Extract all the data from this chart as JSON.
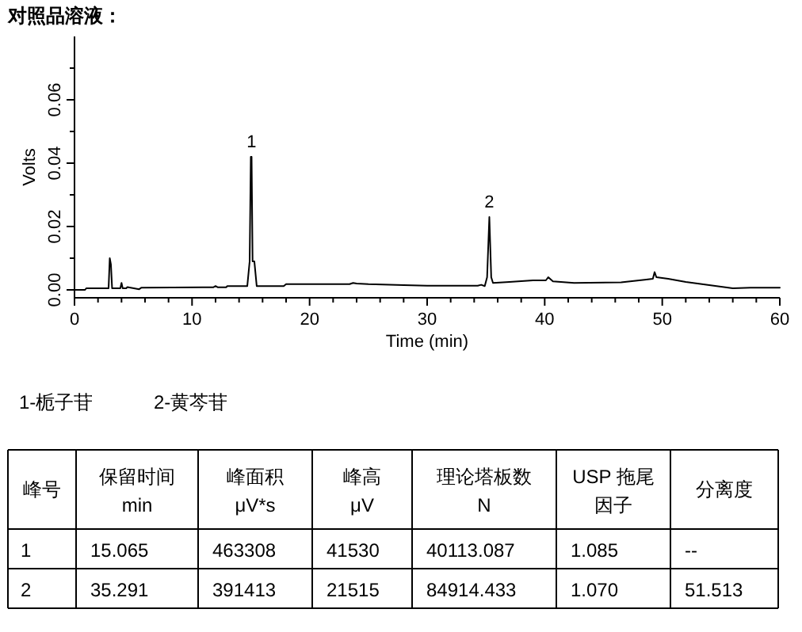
{
  "chart_data": {
    "type": "line",
    "title": "对照品溶液：",
    "xlabel": "Time (min)",
    "ylabel": "Volts",
    "xlim": [
      0,
      60
    ],
    "xticks": [
      0,
      {
        "value": 2,
        "label": null
      },
      {
        "value": 4,
        "label": null
      },
      {
        "value": 6,
        "label": null
      },
      {
        "value": 8,
        "label": null
      },
      10,
      {
        "value": 12,
        "label": null
      },
      {
        "value": 14,
        "label": null
      },
      {
        "value": 16,
        "label": null
      },
      {
        "value": 18,
        "label": null
      },
      20,
      {
        "value": 22,
        "label": null
      },
      {
        "value": 24,
        "label": null
      },
      {
        "value": 26,
        "label": null
      },
      {
        "value": 28,
        "label": null
      },
      30,
      {
        "value": 32,
        "label": null
      },
      {
        "value": 34,
        "label": null
      },
      {
        "value": 36,
        "label": null
      },
      {
        "value": 38,
        "label": null
      },
      40,
      {
        "value": 42,
        "label": null
      },
      {
        "value": 44,
        "label": null
      },
      {
        "value": 46,
        "label": null
      },
      {
        "value": 48,
        "label": null
      },
      50,
      {
        "value": 52,
        "label": null
      },
      {
        "value": 54,
        "label": null
      },
      {
        "value": 56,
        "label": null
      },
      {
        "value": 58,
        "label": null
      },
      60
    ],
    "ylim": [
      -0.0025,
      0.08
    ],
    "yticks": [
      {
        "value": 0,
        "label": "0.00"
      },
      {
        "value": 0.01,
        "label": null
      },
      {
        "value": 0.02,
        "label": "0.02"
      },
      {
        "value": 0.03,
        "label": null
      },
      {
        "value": 0.04,
        "label": "0.04"
      },
      {
        "value": 0.05,
        "label": null
      },
      {
        "value": 0.06,
        "label": "0.06"
      },
      {
        "value": 0.07,
        "label": null
      }
    ],
    "grid": false,
    "series": [
      {
        "color": "#000000",
        "x": [
          0,
          0.9,
          1,
          2.9,
          3,
          3.1,
          3.2,
          3.9,
          4,
          4.1,
          4.4,
          4.5,
          5.5,
          5.7,
          11.8,
          12,
          12.2,
          12.9,
          13,
          14.7,
          14.9,
          15.0,
          15.065,
          15.15,
          15.3,
          15.5,
          16,
          17.8,
          18,
          23.4,
          23.7,
          24,
          25,
          28,
          30,
          34.3,
          34.6,
          34.9,
          35.1,
          35.291,
          35.45,
          35.6,
          37,
          39,
          40.1,
          40.3,
          40.7,
          42.5,
          46.5,
          48.5,
          49.2,
          49.35,
          49.5,
          50.5,
          52,
          54,
          56,
          57.5,
          60
        ],
        "values": [
          0,
          0,
          0.0005,
          0.0005,
          0.01,
          0.008,
          0.0005,
          0.0005,
          0.0022,
          0.0005,
          0.0005,
          0.0009,
          0.0002,
          0.0007,
          0.0008,
          0.0012,
          0.0008,
          0.0008,
          0.0012,
          0.0012,
          0.009,
          0.042,
          0.042,
          0.009,
          0.009,
          0.0012,
          0.0012,
          0.0012,
          0.0018,
          0.0018,
          0.0022,
          0.002,
          0.0018,
          0.0015,
          0.0013,
          0.0013,
          0.0016,
          0.0012,
          0.004,
          0.023,
          0.004,
          0.0022,
          0.0025,
          0.003,
          0.003,
          0.004,
          0.0027,
          0.0022,
          0.0024,
          0.0032,
          0.0035,
          0.0056,
          0.004,
          0.0035,
          0.0025,
          0.0015,
          0.0005,
          0.0007,
          0.0007
        ]
      }
    ],
    "annotations": [
      {
        "text": "1",
        "x": 15.065,
        "y": 0.042
      },
      {
        "text": "2",
        "x": 35.291,
        "y": 0.023
      },
      "1-栀子苷",
      "2-黄芩苷",
      "峰号",
      "保留时间",
      "峰面积",
      "峰高",
      "理论塔板数",
      "USP 拖尾",
      "分离度",
      "min",
      "μV*s",
      "μV",
      "N",
      "因子",
      "1",
      "15.065",
      "463308",
      "41530",
      "40113.087",
      "1.085",
      "--",
      "2",
      "35.291",
      "391413",
      "21515",
      "84914.433",
      "1.070",
      "51.513"
    ]
  }
}
